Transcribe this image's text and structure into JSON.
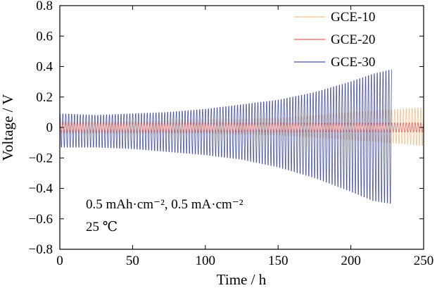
{
  "chart_data": {
    "type": "line",
    "title": "",
    "xlabel": "Time / h",
    "ylabel": "Voltage / V",
    "xlim": [
      0,
      250
    ],
    "ylim": [
      -0.8,
      0.8
    ],
    "xticks": [
      0,
      50,
      100,
      150,
      200,
      250
    ],
    "yticks": [
      -0.8,
      -0.6,
      -0.4,
      -0.2,
      0,
      0.2,
      0.4,
      0.6,
      0.8
    ],
    "x_tick_labels": [
      "0",
      "50",
      "100",
      "150",
      "200",
      "250"
    ],
    "y_tick_labels": [
      "−0.8",
      "−0.6",
      "−0.4",
      "−0.2",
      "0",
      "0.2",
      "0.4",
      "0.6",
      "0.8"
    ],
    "grid": false,
    "legend_position": "top-right",
    "series": [
      {
        "name": "GCE-10",
        "color": "#f3c08e",
        "cycle_period_h": 2,
        "envelope_h": [
          0,
          50,
          100,
          150,
          200,
          250
        ],
        "envelope_upper_V": [
          0.04,
          0.04,
          0.05,
          0.06,
          0.1,
          0.13
        ],
        "envelope_lower_V": [
          -0.04,
          -0.04,
          -0.04,
          -0.05,
          -0.08,
          -0.12
        ],
        "end_h": 250
      },
      {
        "name": "GCE-20",
        "color": "#e8675f",
        "cycle_period_h": 2,
        "envelope_h": [
          0,
          50,
          100,
          150,
          200,
          250
        ],
        "envelope_upper_V": [
          0.03,
          0.03,
          0.03,
          0.03,
          0.03,
          0.03
        ],
        "envelope_lower_V": [
          -0.03,
          -0.03,
          -0.03,
          -0.03,
          -0.03,
          -0.03
        ],
        "end_h": 250
      },
      {
        "name": "GCE-30",
        "color": "#4b54a6",
        "cycle_period_h": 2,
        "envelope_h": [
          0,
          25,
          50,
          75,
          100,
          125,
          150,
          175,
          200,
          215,
          228
        ],
        "envelope_upper_V": [
          0.09,
          0.08,
          0.09,
          0.1,
          0.12,
          0.15,
          0.18,
          0.23,
          0.3,
          0.35,
          0.38
        ],
        "envelope_lower_V": [
          -0.13,
          -0.13,
          -0.14,
          -0.16,
          -0.18,
          -0.21,
          -0.26,
          -0.33,
          -0.42,
          -0.48,
          -0.5
        ],
        "end_h": 228
      }
    ],
    "annotations": [
      "0.5 mAh·cm⁻², 0.5 mA·cm⁻²",
      "25 ℃"
    ]
  }
}
